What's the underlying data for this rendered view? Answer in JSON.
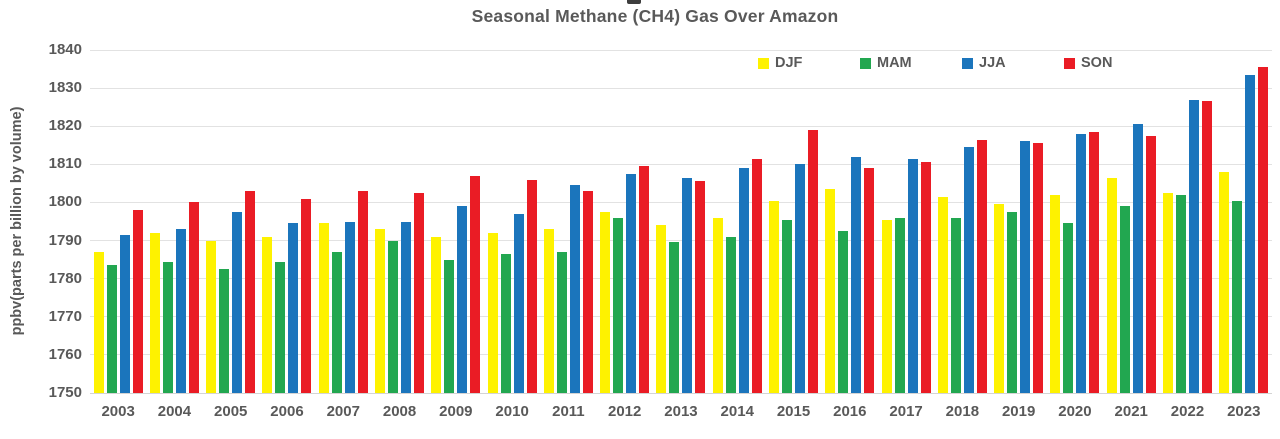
{
  "page": {
    "background": "#ffffff",
    "text_color": "#595959"
  },
  "partial_glyph": {
    "description": "cut-off text fragment at very top edge above title"
  },
  "chart_data": {
    "type": "bar",
    "title": "Seasonal Methane (CH4) Gas Over Amazon",
    "y_axis_title": "ppbv(parts per billion by volume)",
    "xlabel": "",
    "ylabel": "ppbv(parts per billion by volume)",
    "ylim": [
      1750,
      1840
    ],
    "yticks": [
      1750,
      1760,
      1770,
      1780,
      1790,
      1800,
      1810,
      1820,
      1830,
      1840
    ],
    "grid": "horizontal",
    "gridline_color": "#e2e2e2",
    "legend_position": "top-right-inside",
    "categories": [
      "2003",
      "2004",
      "2005",
      "2006",
      "2007",
      "2008",
      "2009",
      "2010",
      "2011",
      "2012",
      "2013",
      "2014",
      "2015",
      "2016",
      "2017",
      "2018",
      "2019",
      "2020",
      "2021",
      "2022",
      "2023"
    ],
    "series": [
      {
        "name": "DJF",
        "color": "#fef200",
        "values": [
          1787,
          1792,
          1790,
          1791,
          1794.5,
          1793,
          1791,
          1792,
          1793,
          1797.5,
          1794,
          1796,
          1800.5,
          1803.5,
          1795.5,
          1801.5,
          1799.5,
          1802,
          1806.5,
          1802.5,
          1808
        ]
      },
      {
        "name": "MAM",
        "color": "#22a750",
        "values": [
          1783.5,
          1784.5,
          1782.5,
          1784.5,
          1787,
          1790,
          1785,
          1786.5,
          1787,
          1796,
          1789.5,
          1791,
          1795.5,
          1792.5,
          1796,
          1796,
          1797.5,
          1794.5,
          1799,
          1802,
          1800.5
        ]
      },
      {
        "name": "JJA",
        "color": "#1b75bc",
        "values": [
          1791.5,
          1793,
          1797.5,
          1794.5,
          1795,
          1795,
          1799,
          1797,
          1804.5,
          1807.5,
          1806.5,
          1809,
          1810,
          1812,
          1811.5,
          1814.5,
          1816,
          1818,
          1820.5,
          1827,
          1833.5
        ]
      },
      {
        "name": "SON",
        "color": "#ea1c25",
        "values": [
          1798,
          1800,
          1803,
          1801,
          1803,
          1802.5,
          1807,
          1806,
          1803,
          1809.5,
          1805.5,
          1811.5,
          1819,
          1809,
          1810.5,
          1816.5,
          1815.5,
          1818.5,
          1817.5,
          1826.5,
          1835.5
        ]
      }
    ]
  }
}
